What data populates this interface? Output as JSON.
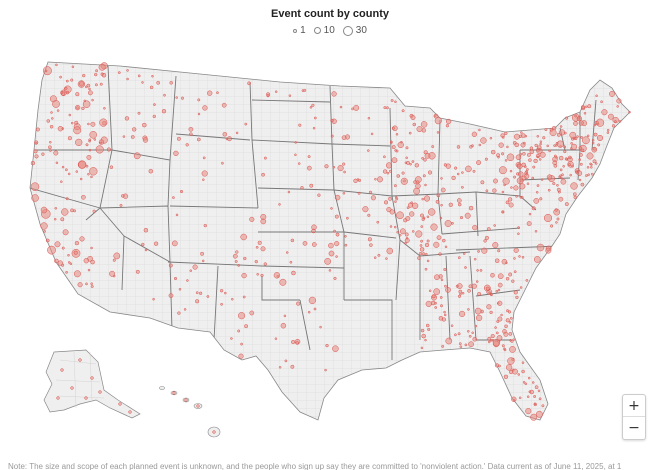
{
  "title": "Event count by county",
  "legend": {
    "items": [
      {
        "label": "1",
        "count": 1
      },
      {
        "label": "10",
        "count": 10
      },
      {
        "label": "30",
        "count": 30
      }
    ]
  },
  "colors": {
    "land": "#efefef",
    "state_border": "#777777",
    "county_border": "#cfcfcf",
    "dot_fill": "#e8897f",
    "dot_stroke": "#d9534f",
    "background": "#ffffff"
  },
  "zoom": {
    "zoom_in_label": "+",
    "zoom_out_label": "−"
  },
  "note": "Note: The size and scope of each planned event is unknown, and the people who sign up say they are committed to 'nonviolent action.' Data current as of June 11, 2025, at 1"
}
